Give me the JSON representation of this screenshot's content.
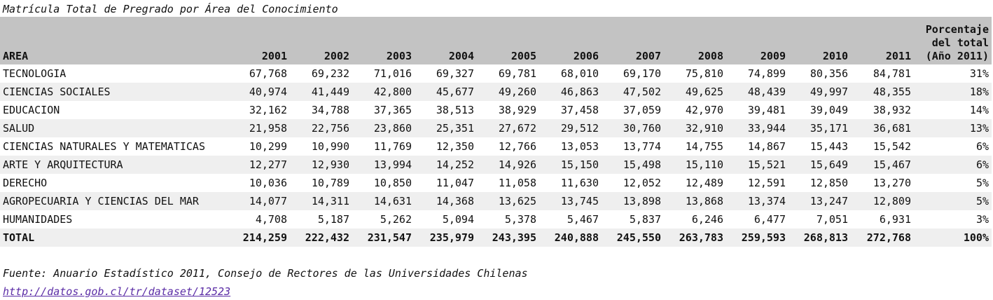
{
  "caption": "Matrícula Total de Pregrado por Área del Conocimiento",
  "table": {
    "headers": {
      "area": "AREA",
      "years": [
        "2001",
        "2002",
        "2003",
        "2004",
        "2005",
        "2006",
        "2007",
        "2008",
        "2009",
        "2010",
        "2011"
      ],
      "pct_lines": [
        "Porcentaje",
        "del total",
        "(Año 2011)"
      ]
    },
    "rows": [
      {
        "area": "TECNOLOGIA",
        "values": [
          "67,768",
          "69,232",
          "71,016",
          "69,327",
          "69,781",
          "68,010",
          "69,170",
          "75,810",
          "74,899",
          "80,356",
          "84,781"
        ],
        "pct": "31%"
      },
      {
        "area": "CIENCIAS SOCIALES",
        "values": [
          "40,974",
          "41,449",
          "42,800",
          "45,677",
          "49,260",
          "46,863",
          "47,502",
          "49,625",
          "48,439",
          "49,997",
          "48,355"
        ],
        "pct": "18%"
      },
      {
        "area": "EDUCACION",
        "values": [
          "32,162",
          "34,788",
          "37,365",
          "38,513",
          "38,929",
          "37,458",
          "37,059",
          "42,970",
          "39,481",
          "39,049",
          "38,932"
        ],
        "pct": "14%"
      },
      {
        "area": "SALUD",
        "values": [
          "21,958",
          "22,756",
          "23,860",
          "25,351",
          "27,672",
          "29,512",
          "30,760",
          "32,910",
          "33,944",
          "35,171",
          "36,681"
        ],
        "pct": "13%"
      },
      {
        "area": "CIENCIAS NATURALES Y MATEMATICAS",
        "values": [
          "10,299",
          "10,990",
          "11,769",
          "12,350",
          "12,766",
          "13,053",
          "13,774",
          "14,755",
          "14,867",
          "15,443",
          "15,542"
        ],
        "pct": "6%"
      },
      {
        "area": "ARTE Y ARQUITECTURA",
        "values": [
          "12,277",
          "12,930",
          "13,994",
          "14,252",
          "14,926",
          "15,150",
          "15,498",
          "15,110",
          "15,521",
          "15,649",
          "15,467"
        ],
        "pct": "6%"
      },
      {
        "area": "DERECHO",
        "values": [
          "10,036",
          "10,789",
          "10,850",
          "11,047",
          "11,058",
          "11,630",
          "12,052",
          "12,489",
          "12,591",
          "12,850",
          "13,270"
        ],
        "pct": "5%"
      },
      {
        "area": "AGROPECUARIA Y CIENCIAS DEL MAR",
        "values": [
          "14,077",
          "14,311",
          "14,631",
          "14,368",
          "13,625",
          "13,745",
          "13,898",
          "13,868",
          "13,374",
          "13,247",
          "12,809"
        ],
        "pct": "5%"
      },
      {
        "area": "HUMANIDADES",
        "values": [
          "4,708",
          "5,187",
          "5,262",
          "5,094",
          "5,378",
          "5,467",
          "5,837",
          "6,246",
          "6,477",
          "7,051",
          "6,931"
        ],
        "pct": "3%"
      }
    ],
    "total": {
      "area": "TOTAL",
      "values": [
        "214,259",
        "222,432",
        "231,547",
        "235,979",
        "243,395",
        "240,888",
        "245,550",
        "263,783",
        "259,593",
        "268,813",
        "272,768"
      ],
      "pct": "100%"
    }
  },
  "source": "Fuente: Anuario Estadístico 2011, Consejo de Rectores de las Universidades Chilenas",
  "link": "http://datos.gob.cl/tr/dataset/12523",
  "colors": {
    "header_bg": "#c3c3c3",
    "stripe_bg": "#efefef",
    "link": "#5b2da6"
  }
}
